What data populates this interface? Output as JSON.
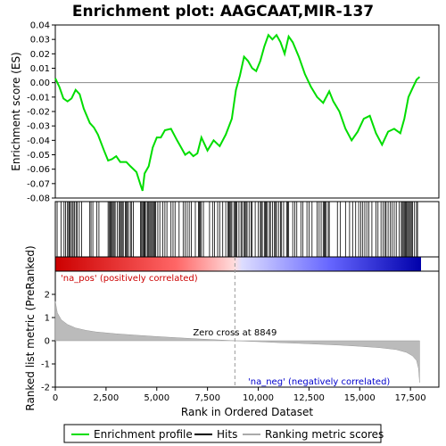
{
  "chart_data": {
    "type": "line",
    "title": "Enrichment plot: AAGCAAT,MIR-137",
    "x_axis": {
      "label": "Rank in Ordered Dataset",
      "range": [
        0,
        18900
      ],
      "ticks": [
        0,
        2500,
        5000,
        7500,
        10000,
        12500,
        15000,
        17500
      ],
      "tick_labels": [
        "0",
        "2,500",
        "5,000",
        "7,500",
        "10,000",
        "12,500",
        "15,000",
        "17,500"
      ]
    },
    "es_panel": {
      "ylabel": "Enrichment score (ES)",
      "ylim": [
        -0.08,
        0.04
      ],
      "ticks": [
        0.04,
        0.03,
        0.02,
        0.01,
        0.0,
        -0.01,
        -0.02,
        -0.03,
        -0.04,
        -0.05,
        -0.06,
        -0.07,
        -0.08
      ],
      "tick_labels": [
        "0.04",
        "0.03",
        "0.02",
        "0.01",
        "0.00",
        "-0.01",
        "-0.02",
        "-0.03",
        "-0.04",
        "-0.05",
        "-0.06",
        "-0.07",
        "-0.08"
      ],
      "grid": false,
      "series": [
        {
          "name": "Enrichment profile",
          "color": "#00dd00",
          "points": [
            [
              0,
              0.003
            ],
            [
              200,
              -0.003
            ],
            [
              400,
              -0.011
            ],
            [
              600,
              -0.013
            ],
            [
              800,
              -0.011
            ],
            [
              1000,
              -0.005
            ],
            [
              1200,
              -0.008
            ],
            [
              1400,
              -0.018
            ],
            [
              1700,
              -0.028
            ],
            [
              1900,
              -0.031
            ],
            [
              2100,
              -0.036
            ],
            [
              2400,
              -0.047
            ],
            [
              2600,
              -0.054
            ],
            [
              2800,
              -0.053
            ],
            [
              3000,
              -0.051
            ],
            [
              3200,
              -0.055
            ],
            [
              3500,
              -0.055
            ],
            [
              3700,
              -0.058
            ],
            [
              4000,
              -0.062
            ],
            [
              4200,
              -0.071
            ],
            [
              4300,
              -0.075
            ],
            [
              4400,
              -0.063
            ],
            [
              4600,
              -0.058
            ],
            [
              4800,
              -0.045
            ],
            [
              5000,
              -0.038
            ],
            [
              5200,
              -0.038
            ],
            [
              5400,
              -0.033
            ],
            [
              5700,
              -0.032
            ],
            [
              6000,
              -0.04
            ],
            [
              6200,
              -0.045
            ],
            [
              6400,
              -0.05
            ],
            [
              6600,
              -0.048
            ],
            [
              6800,
              -0.051
            ],
            [
              7000,
              -0.049
            ],
            [
              7200,
              -0.038
            ],
            [
              7500,
              -0.047
            ],
            [
              7800,
              -0.04
            ],
            [
              8100,
              -0.044
            ],
            [
              8400,
              -0.036
            ],
            [
              8700,
              -0.025
            ],
            [
              8900,
              -0.005
            ],
            [
              9100,
              0.005
            ],
            [
              9300,
              0.018
            ],
            [
              9500,
              0.015
            ],
            [
              9700,
              0.01
            ],
            [
              9900,
              0.008
            ],
            [
              10100,
              0.015
            ],
            [
              10300,
              0.025
            ],
            [
              10500,
              0.033
            ],
            [
              10700,
              0.03
            ],
            [
              10900,
              0.033
            ],
            [
              11100,
              0.028
            ],
            [
              11300,
              0.02
            ],
            [
              11500,
              0.032
            ],
            [
              11700,
              0.028
            ],
            [
              12000,
              0.018
            ],
            [
              12300,
              0.006
            ],
            [
              12600,
              -0.003
            ],
            [
              12900,
              -0.01
            ],
            [
              13200,
              -0.014
            ],
            [
              13500,
              -0.006
            ],
            [
              13700,
              -0.013
            ],
            [
              14000,
              -0.02
            ],
            [
              14300,
              -0.032
            ],
            [
              14600,
              -0.04
            ],
            [
              14900,
              -0.034
            ],
            [
              15200,
              -0.025
            ],
            [
              15500,
              -0.023
            ],
            [
              15800,
              -0.035
            ],
            [
              16100,
              -0.043
            ],
            [
              16400,
              -0.034
            ],
            [
              16700,
              -0.032
            ],
            [
              17000,
              -0.035
            ],
            [
              17200,
              -0.025
            ],
            [
              17400,
              -0.01
            ],
            [
              17600,
              -0.004
            ],
            [
              17800,
              0.002
            ],
            [
              17950,
              0.004
            ]
          ]
        }
      ],
      "zero_line": 0
    },
    "hits": {
      "label": "Hits",
      "positions": [
        90,
        280,
        430,
        510,
        600,
        660,
        700,
        750,
        830,
        880,
        940,
        1020,
        1080,
        1180,
        1300,
        1700,
        1760,
        1850,
        2050,
        2150,
        2600,
        2650,
        2700,
        2750,
        2800,
        2850,
        2900,
        2950,
        3050,
        3150,
        3200,
        3250,
        3300,
        3350,
        3450,
        3500,
        3550,
        3600,
        3700,
        3750,
        3850,
        4200,
        4250,
        4300,
        4350,
        4380,
        4420,
        4480,
        4550,
        4600,
        4650,
        4700,
        4750,
        4800,
        4850,
        4900,
        4950,
        5050,
        5150,
        5300,
        5400,
        5500,
        5700,
        5800,
        5900,
        6100,
        6300,
        6400,
        6500,
        6600,
        6700,
        6900,
        7050,
        7100,
        7150,
        7200,
        7300,
        7600,
        7750,
        7850,
        8000,
        8100,
        8250,
        8400,
        8500,
        8550,
        8600,
        8650,
        8700,
        8800,
        8850,
        8900,
        8950,
        9050,
        9150,
        9200,
        9300,
        9350,
        9400,
        9450,
        9550,
        9650,
        9700,
        9850,
        10000,
        10100,
        10150,
        10200,
        10300,
        10350,
        10400,
        10450,
        10550,
        10600,
        10700,
        10800,
        10850,
        10900,
        11000,
        11100,
        11150,
        11250,
        11400,
        11450,
        11500,
        11700,
        11800,
        11900,
        12100,
        12200,
        12400,
        12500,
        12650,
        12900,
        13000,
        13100,
        13200,
        13250,
        13300,
        13350,
        13450,
        13500,
        13900,
        14050,
        14300,
        14500,
        14650,
        14800,
        14950,
        15050,
        15150,
        15250,
        15350,
        15450,
        15600,
        15800,
        15900,
        16050,
        16150,
        16250,
        16300,
        16400,
        16500,
        16600,
        16700,
        16800,
        16950,
        17050,
        17100,
        17150,
        17200,
        17250,
        17300,
        17350,
        17400,
        17450,
        17500,
        17550,
        17600,
        17700,
        17800,
        17850
      ]
    },
    "metric_panel": {
      "ylabel": "Ranked list metric (PreRanked)",
      "ylim": [
        -2,
        3
      ],
      "ticks": [
        2,
        1,
        0,
        -1,
        -2
      ],
      "tick_labels": [
        "2",
        "1",
        "0",
        "-1",
        "-2"
      ],
      "series": [
        {
          "name": "Ranking metric scores",
          "color": "#aaaaaa",
          "points": [
            [
              0,
              1.7
            ],
            [
              100,
              1.2
            ],
            [
              300,
              0.9
            ],
            [
              600,
              0.7
            ],
            [
              1000,
              0.55
            ],
            [
              1500,
              0.45
            ],
            [
              2000,
              0.38
            ],
            [
              3000,
              0.3
            ],
            [
              4000,
              0.24
            ],
            [
              5000,
              0.18
            ],
            [
              6000,
              0.13
            ],
            [
              7000,
              0.08
            ],
            [
              8000,
              0.04
            ],
            [
              8849,
              0.0
            ],
            [
              10000,
              -0.04
            ],
            [
              11000,
              -0.08
            ],
            [
              12000,
              -0.11
            ],
            [
              13000,
              -0.15
            ],
            [
              14000,
              -0.19
            ],
            [
              15000,
              -0.24
            ],
            [
              16000,
              -0.3
            ],
            [
              16800,
              -0.38
            ],
            [
              17300,
              -0.5
            ],
            [
              17600,
              -0.65
            ],
            [
              17800,
              -0.85
            ],
            [
              17900,
              -1.2
            ],
            [
              17950,
              -1.8
            ]
          ]
        }
      ],
      "zero_cross_label": "Zero cross at 8849",
      "zero_cross": 8849,
      "pos_label": "'na_pos' (positively correlated)",
      "neg_label": "'na_neg' (negatively correlated)",
      "pos_color": "#cc0000",
      "neg_color": "#0000cc"
    },
    "legend": {
      "placement": "bottom",
      "entries": [
        {
          "label": "Enrichment profile",
          "color": "#00dd00",
          "kind": "line"
        },
        {
          "label": "Hits",
          "color": "#000000",
          "kind": "line"
        },
        {
          "label": "Ranking metric scores",
          "color": "#aaaaaa",
          "kind": "line"
        }
      ]
    },
    "dataset_size": 17950
  }
}
